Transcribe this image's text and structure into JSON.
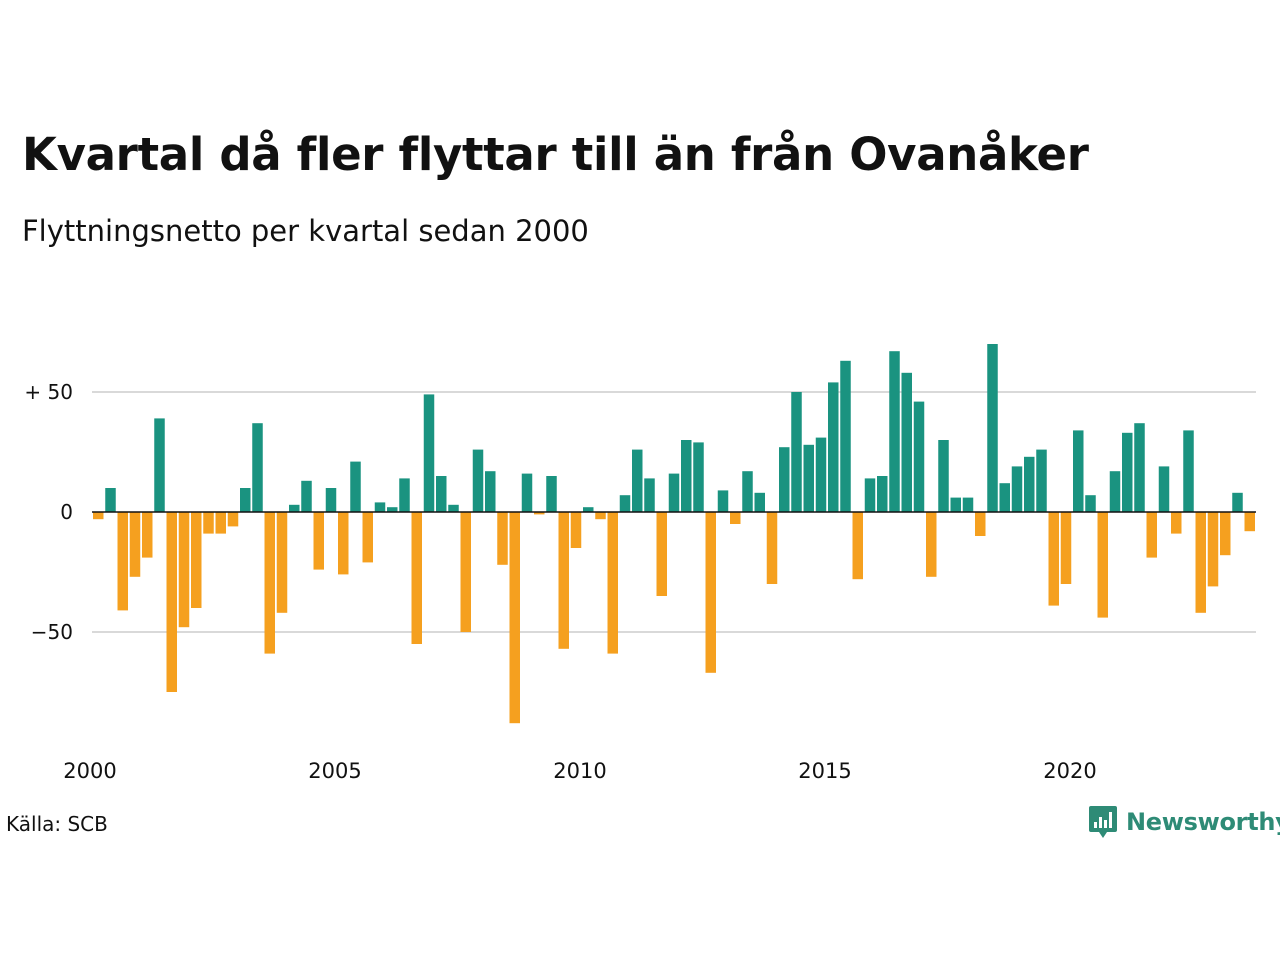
{
  "header": {
    "title": "Kvartal då fler flyttar till än från Ovanåker",
    "subtitle": "Flyttningsnetto per kvartal sedan 2000"
  },
  "footer": {
    "source": "Källa: SCB",
    "brand": "Newsworthy"
  },
  "colors": {
    "positive": "#1a9380",
    "negative": "#f5a01f",
    "grid": "#d9d9d9",
    "text": "#111111",
    "brand": "#2e8b76"
  },
  "chart_data": {
    "type": "bar",
    "start": "2000 Q1",
    "y_ticks": [
      50,
      0,
      -50
    ],
    "y_tick_labels": [
      "+ 50",
      "0",
      "−50"
    ],
    "x_ticks": [
      2000,
      2005,
      2010,
      2015,
      2020
    ],
    "x_tick_labels": [
      "2000",
      "2005",
      "2010",
      "2015",
      "2020"
    ],
    "ylim": [
      -90,
      70
    ],
    "grid": true,
    "series": [
      {
        "values": [
          -3,
          10,
          -41,
          -27,
          -19,
          39,
          -75,
          -48,
          -40,
          -9,
          -9,
          -6,
          10,
          37,
          -59,
          -42,
          3,
          13,
          -24,
          10,
          -26,
          21,
          -21,
          4,
          2,
          14,
          -55,
          49,
          15,
          3,
          -50,
          26,
          17,
          -22,
          -88,
          16,
          -1,
          15,
          -57,
          -15,
          2,
          -3,
          -59,
          7,
          26,
          14,
          -35,
          16,
          30,
          29,
          -67,
          9,
          -5,
          17,
          8,
          -30,
          27,
          50,
          28,
          31,
          54,
          63,
          -28,
          14,
          15,
          67,
          58,
          46,
          -27,
          30,
          6,
          6,
          -10,
          70,
          12,
          19,
          23,
          26,
          -39,
          -30,
          34,
          7,
          -44,
          17,
          33,
          37,
          -19,
          19,
          -9,
          34,
          -42,
          -31,
          -18,
          8,
          -8
        ]
      }
    ]
  }
}
